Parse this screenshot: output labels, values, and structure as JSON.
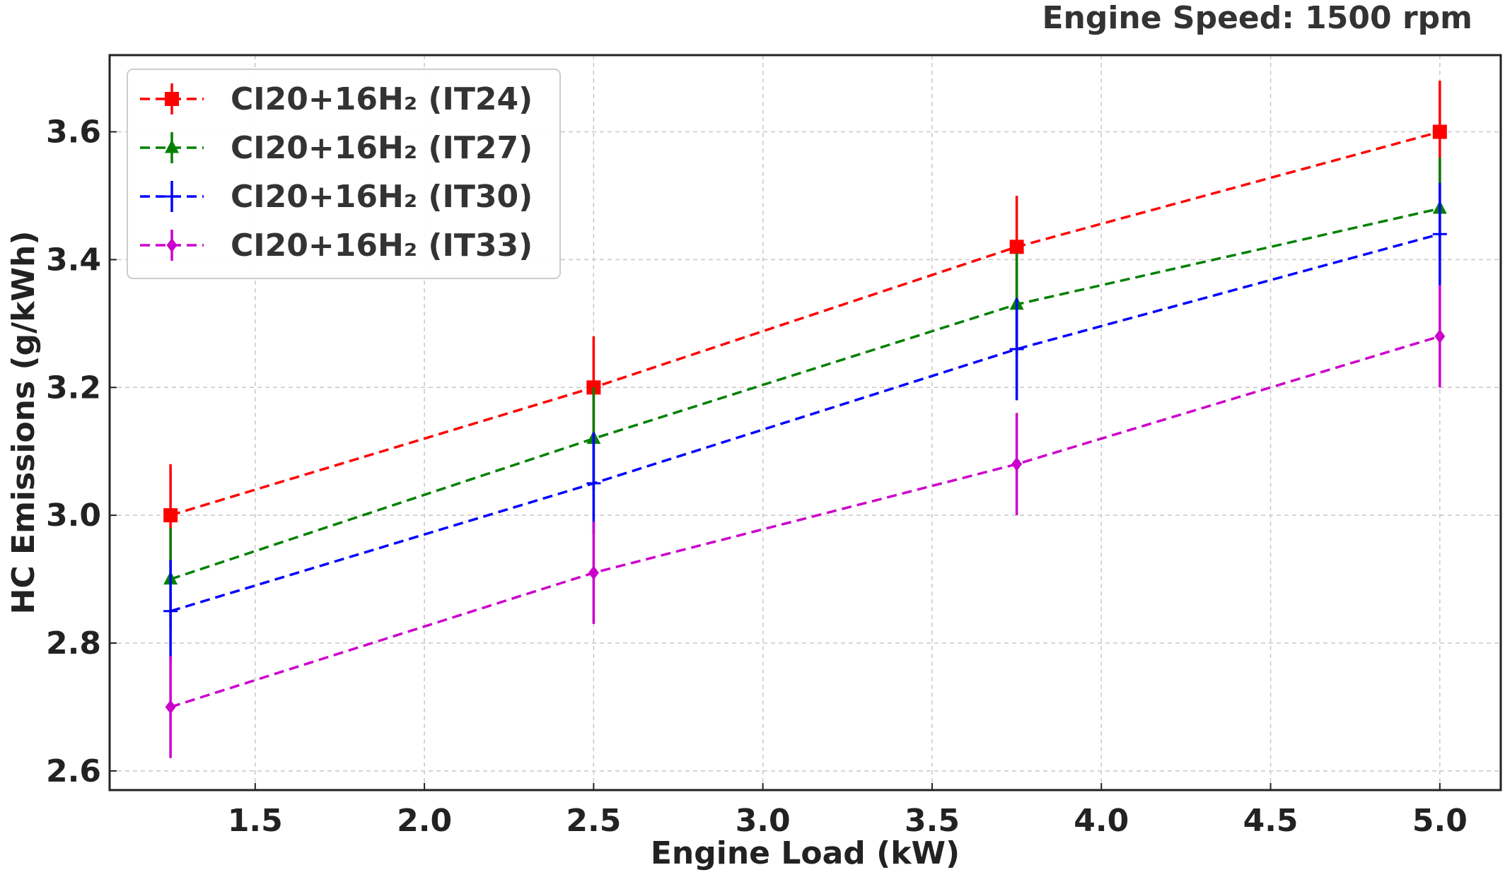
{
  "chart_data": {
    "type": "line",
    "title": "Engine Speed: 1500 rpm",
    "xlabel": "Engine Load (kW)",
    "ylabel": "HC Emissions (g/kWh)",
    "xlim": [
      1.07,
      5.18
    ],
    "ylim": [
      2.57,
      3.72
    ],
    "xticks": [
      1.5,
      2.0,
      2.5,
      3.0,
      3.5,
      4.0,
      4.5,
      5.0
    ],
    "xtick_labels": [
      "1.5",
      "2.0",
      "2.5",
      "3.0",
      "3.5",
      "4.0",
      "4.5",
      "5.0"
    ],
    "yticks": [
      2.6,
      2.8,
      3.0,
      3.2,
      3.4,
      3.6
    ],
    "ytick_labels": [
      "2.6",
      "2.8",
      "3.0",
      "3.2",
      "3.4",
      "3.6"
    ],
    "grid": true,
    "legend_position": "top-left",
    "x": [
      1.25,
      2.5,
      3.75,
      5.0
    ],
    "series": [
      {
        "name": "CI20+16H₂ (IT24)",
        "color": "#ff0000",
        "marker": "square",
        "values": [
          3.0,
          3.2,
          3.42,
          3.6
        ],
        "errors": [
          0.08,
          0.08,
          0.08,
          0.08
        ]
      },
      {
        "name": "CI20+16H₂ (IT27)",
        "color": "#008000",
        "marker": "triangle",
        "values": [
          2.9,
          3.12,
          3.33,
          3.48
        ],
        "errors": [
          0.08,
          0.08,
          0.08,
          0.08
        ]
      },
      {
        "name": "CI20+16H₂ (IT30)",
        "color": "#0000ff",
        "marker": "plus",
        "values": [
          2.85,
          3.05,
          3.26,
          3.44
        ],
        "errors": [
          0.08,
          0.08,
          0.08,
          0.08
        ]
      },
      {
        "name": "CI20+16H₂ (IT33)",
        "color": "#cc00cc",
        "marker": "diamond",
        "values": [
          2.7,
          2.91,
          3.08,
          3.28
        ],
        "errors": [
          0.08,
          0.08,
          0.08,
          0.08
        ]
      }
    ]
  }
}
